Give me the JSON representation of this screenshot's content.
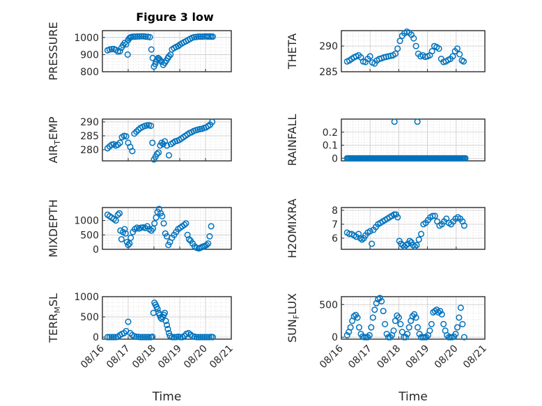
{
  "figure": {
    "title": "Figure 3 low"
  },
  "colors": {
    "marker": "#0072BD",
    "axis": "#262626"
  },
  "chart_data": [
    {
      "type": "scatter",
      "panel": "top-left",
      "ylabel": "PRESSURE",
      "xlabel": "",
      "ylim": [
        800,
        1040
      ],
      "yticks": [
        800,
        900,
        1000
      ],
      "ytick_labels": [
        "800",
        "900",
        "1000"
      ],
      "x_ticks": [
        "08/16",
        "08/17",
        "08/18",
        "08/19",
        "08/20",
        "08/21"
      ],
      "show_xticklabels": false,
      "grid": true,
      "marker": "circle",
      "x": [
        0.2,
        0.28,
        0.36,
        0.44,
        0.52,
        0.6,
        0.68,
        0.74,
        0.8,
        0.86,
        0.92,
        0.98,
        1.0,
        1.04,
        1.08,
        1.12,
        1.2,
        1.28,
        1.36,
        1.44,
        1.52,
        1.6,
        1.68,
        1.76,
        1.84,
        1.9,
        1.95,
        2.0,
        2.05,
        2.08,
        2.12,
        2.16,
        2.2,
        2.24,
        2.3,
        2.36,
        2.42,
        2.48,
        2.54,
        2.58,
        2.64,
        2.7,
        2.78,
        2.86,
        2.94,
        3.0,
        3.08,
        3.16,
        3.24,
        3.32,
        3.4,
        3.48,
        3.56,
        3.64,
        3.72,
        3.8,
        3.88,
        3.96,
        4.04,
        4.1,
        4.16,
        4.22,
        4.28
      ],
      "y": [
        925,
        930,
        932,
        933,
        928,
        918,
        920,
        940,
        955,
        968,
        960,
        900,
        985,
        995,
        1000,
        1003,
        1005,
        1005,
        1006,
        1006,
        1007,
        1007,
        1005,
        1004,
        1002,
        930,
        880,
        830,
        845,
        860,
        870,
        880,
        875,
        868,
        858,
        840,
        852,
        865,
        880,
        890,
        900,
        930,
        938,
        945,
        950,
        958,
        965,
        972,
        978,
        985,
        992,
        998,
        1002,
        1003,
        1005,
        1005,
        1005,
        1006,
        1006,
        1005,
        1006,
        1005,
        1005
      ]
    },
    {
      "type": "scatter",
      "panel": "top-right",
      "ylabel": "THETA",
      "xlabel": "",
      "ylim": [
        285,
        293
      ],
      "yticks": [
        285,
        290
      ],
      "ytick_labels": [
        "285",
        "290"
      ],
      "x_ticks": [
        "08/16",
        "08/17",
        "08/18",
        "08/19",
        "08/20",
        "08/21"
      ],
      "show_xticklabels": false,
      "grid": true,
      "marker": "circle",
      "x": [
        0.2,
        0.28,
        0.36,
        0.44,
        0.52,
        0.6,
        0.68,
        0.76,
        0.84,
        0.92,
        1.0,
        1.08,
        1.16,
        1.24,
        1.32,
        1.4,
        1.48,
        1.56,
        1.64,
        1.72,
        1.8,
        1.88,
        1.96,
        2.04,
        2.12,
        2.2,
        2.28,
        2.36,
        2.44,
        2.52,
        2.6,
        2.68,
        2.76,
        2.84,
        2.92,
        3.0,
        3.08,
        3.16,
        3.24,
        3.32,
        3.4,
        3.48,
        3.56,
        3.64,
        3.72,
        3.8,
        3.88,
        3.96,
        4.04,
        4.12,
        4.2,
        4.26
      ],
      "y": [
        287.0,
        287.2,
        287.5,
        287.8,
        288.0,
        288.2,
        287.8,
        287.0,
        286.9,
        287.5,
        288.0,
        286.8,
        286.6,
        287.2,
        287.5,
        287.6,
        287.8,
        287.9,
        288.0,
        288.1,
        288.2,
        288.5,
        289.5,
        291.0,
        292.0,
        292.5,
        292.8,
        292.6,
        292.2,
        291.5,
        290.0,
        288.5,
        288.0,
        288.2,
        287.9,
        288.0,
        288.2,
        289.0,
        290.0,
        289.8,
        289.5,
        287.5,
        286.9,
        287.0,
        287.3,
        287.5,
        288.0,
        289.0,
        289.5,
        288.4,
        287.2,
        287.0
      ]
    },
    {
      "type": "scatter",
      "panel": "row2-left",
      "ylabel": "AIR_TEMP",
      "xlabel": "",
      "ylim": [
        276,
        291
      ],
      "yticks": [
        280,
        285,
        290
      ],
      "ytick_labels": [
        "280",
        "285",
        "290"
      ],
      "x_ticks": [
        "08/16",
        "08/17",
        "08/18",
        "08/19",
        "08/20",
        "08/21"
      ],
      "show_xticklabels": false,
      "grid": true,
      "marker": "circle",
      "x": [
        0.2,
        0.28,
        0.36,
        0.44,
        0.52,
        0.6,
        0.68,
        0.76,
        0.84,
        0.92,
        1.0,
        1.08,
        1.16,
        1.24,
        1.32,
        1.4,
        1.48,
        1.56,
        1.64,
        1.72,
        1.8,
        1.88,
        1.94,
        2.0,
        2.06,
        2.12,
        2.18,
        2.24,
        2.3,
        2.36,
        2.42,
        2.5,
        2.58,
        2.66,
        2.74,
        2.82,
        2.9,
        2.98,
        3.06,
        3.14,
        3.22,
        3.3,
        3.38,
        3.46,
        3.54,
        3.62,
        3.7,
        3.78,
        3.86,
        3.94,
        4.02,
        4.1,
        4.18,
        4.26
      ],
      "y": [
        280.5,
        281.2,
        281.8,
        282.0,
        281.5,
        281.8,
        282.5,
        284.5,
        285.0,
        284.8,
        282.5,
        281.0,
        279.5,
        285.8,
        286.5,
        287.2,
        287.8,
        288.2,
        288.5,
        288.7,
        288.8,
        288.6,
        282.5,
        276.5,
        277.5,
        278.5,
        279.0,
        281.5,
        282.5,
        282.0,
        283.0,
        281.5,
        278.0,
        282.0,
        282.5,
        283.0,
        283.2,
        283.5,
        284.0,
        284.5,
        285.0,
        285.5,
        286.0,
        286.3,
        286.7,
        287.0,
        287.2,
        287.4,
        287.5,
        287.8,
        288.0,
        288.5,
        289.0,
        290.0
      ]
    },
    {
      "type": "scatter",
      "panel": "row2-right",
      "ylabel": "RAINFALL",
      "xlabel": "",
      "ylim": [
        -0.02,
        0.3
      ],
      "yticks": [
        0,
        0.1,
        0.2
      ],
      "ytick_labels": [
        "0",
        "0.1",
        "0.2"
      ],
      "x_ticks": [
        "08/16",
        "08/17",
        "08/18",
        "08/19",
        "08/20",
        "08/21"
      ],
      "show_xticklabels": false,
      "grid": true,
      "marker": "circle",
      "baseline": {
        "y": 0,
        "x_start": 0.2,
        "x_end": 4.32
      },
      "x": [
        1.85,
        2.65
      ],
      "y": [
        0.28,
        0.28
      ]
    },
    {
      "type": "scatter",
      "panel": "row3-left",
      "ylabel": "MIXDEPTH",
      "xlabel": "",
      "ylim": [
        0,
        1450
      ],
      "yticks": [
        0,
        500,
        1000
      ],
      "ytick_labels": [
        "0",
        "500",
        "1000"
      ],
      "x_ticks": [
        "08/16",
        "08/17",
        "08/18",
        "08/19",
        "08/20",
        "08/21"
      ],
      "show_xticklabels": false,
      "grid": true,
      "marker": "circle",
      "x": [
        0.2,
        0.28,
        0.36,
        0.44,
        0.52,
        0.6,
        0.66,
        0.7,
        0.74,
        0.8,
        0.86,
        0.9,
        0.95,
        1.0,
        1.05,
        1.1,
        1.18,
        1.26,
        1.34,
        1.42,
        1.5,
        1.58,
        1.66,
        1.74,
        1.82,
        1.9,
        1.96,
        2.02,
        2.08,
        2.14,
        2.2,
        2.26,
        2.32,
        2.38,
        2.44,
        2.5,
        2.56,
        2.62,
        2.7,
        2.78,
        2.86,
        2.94,
        3.02,
        3.1,
        3.18,
        3.24,
        3.3,
        3.36,
        3.42,
        3.5,
        3.58,
        3.66,
        3.74,
        3.8,
        3.86,
        3.92,
        3.98,
        4.04,
        4.1,
        4.16,
        4.22
      ],
      "y": [
        1200,
        1150,
        1100,
        1050,
        1000,
        1200,
        1250,
        650,
        350,
        600,
        700,
        550,
        250,
        150,
        200,
        400,
        600,
        700,
        750,
        720,
        750,
        760,
        740,
        800,
        700,
        650,
        720,
        900,
        1100,
        1300,
        1400,
        1250,
        1150,
        900,
        550,
        450,
        150,
        250,
        400,
        500,
        600,
        700,
        750,
        800,
        850,
        900,
        500,
        350,
        300,
        200,
        100,
        50,
        30,
        50,
        80,
        100,
        120,
        150,
        200,
        450,
        800
      ]
    },
    {
      "type": "scatter",
      "panel": "row3-right",
      "ylabel": "H2OMIXRA",
      "xlabel": "",
      "ylim": [
        5.2,
        8.2
      ],
      "yticks": [
        6,
        7,
        8
      ],
      "ytick_labels": [
        "6",
        "7",
        "8"
      ],
      "x_ticks": [
        "08/16",
        "08/17",
        "08/18",
        "08/19",
        "08/20",
        "08/21"
      ],
      "show_xticklabels": false,
      "grid": true,
      "marker": "circle",
      "x": [
        0.2,
        0.28,
        0.36,
        0.44,
        0.52,
        0.6,
        0.66,
        0.72,
        0.78,
        0.84,
        0.92,
        1.0,
        1.06,
        1.12,
        1.2,
        1.28,
        1.36,
        1.44,
        1.52,
        1.6,
        1.68,
        1.76,
        1.84,
        1.9,
        1.96,
        2.02,
        2.08,
        2.14,
        2.2,
        2.26,
        2.32,
        2.38,
        2.44,
        2.5,
        2.56,
        2.62,
        2.7,
        2.78,
        2.86,
        2.94,
        3.02,
        3.1,
        3.18,
        3.26,
        3.34,
        3.42,
        3.5,
        3.58,
        3.66,
        3.74,
        3.82,
        3.9,
        3.98,
        4.06,
        4.14,
        4.22,
        4.28
      ],
      "y": [
        6.4,
        6.3,
        6.3,
        6.2,
        6.1,
        6.3,
        6.0,
        5.9,
        6.0,
        6.2,
        6.4,
        6.5,
        5.6,
        6.6,
        6.8,
        7.0,
        7.1,
        7.2,
        7.3,
        7.4,
        7.5,
        7.6,
        7.7,
        7.7,
        7.5,
        5.8,
        5.6,
        5.5,
        5.4,
        5.5,
        5.6,
        5.8,
        5.7,
        5.5,
        5.4,
        5.5,
        5.9,
        6.3,
        7.0,
        7.1,
        7.3,
        7.5,
        7.6,
        7.6,
        7.2,
        6.9,
        7.0,
        7.2,
        7.4,
        7.1,
        7.0,
        7.2,
        7.4,
        7.5,
        7.4,
        7.2,
        6.9
      ]
    },
    {
      "type": "scatter",
      "panel": "bottom-left",
      "ylabel": "TERR_MSL",
      "xlabel": "Time",
      "ylim": [
        -50,
        1000
      ],
      "yticks": [
        0,
        500,
        1000
      ],
      "ytick_labels": [
        "0",
        "500",
        "1000"
      ],
      "x_ticks": [
        "08/16",
        "08/17",
        "08/18",
        "08/19",
        "08/20",
        "08/21"
      ],
      "show_xticklabels": true,
      "grid": true,
      "marker": "circle",
      "x": [
        0.2,
        0.28,
        0.36,
        0.44,
        0.52,
        0.6,
        0.68,
        0.76,
        0.84,
        0.92,
        1.0,
        1.08,
        1.16,
        1.24,
        1.32,
        1.4,
        1.48,
        1.56,
        1.64,
        1.72,
        1.8,
        1.88,
        1.94,
        1.98,
        2.02,
        2.06,
        2.1,
        2.14,
        2.18,
        2.22,
        2.26,
        2.3,
        2.34,
        2.38,
        2.42,
        2.46,
        2.5,
        2.54,
        2.58,
        2.62,
        2.7,
        2.78,
        2.86,
        2.94,
        3.02,
        3.1,
        3.18,
        3.26,
        3.34,
        3.42,
        3.5,
        3.58,
        3.66,
        3.74,
        3.82,
        3.9,
        3.98,
        4.06,
        4.14,
        4.22,
        4.28
      ],
      "y": [
        0,
        0,
        0,
        0,
        0,
        10,
        50,
        80,
        100,
        150,
        380,
        100,
        50,
        20,
        10,
        5,
        0,
        0,
        0,
        0,
        0,
        0,
        10,
        600,
        850,
        800,
        750,
        700,
        600,
        550,
        480,
        450,
        500,
        550,
        600,
        400,
        300,
        200,
        100,
        30,
        0,
        0,
        0,
        10,
        0,
        0,
        30,
        80,
        100,
        60,
        20,
        10,
        0,
        0,
        0,
        0,
        0,
        0,
        0,
        5,
        0
      ]
    },
    {
      "type": "scatter",
      "panel": "bottom-right",
      "ylabel": "SUN_FLUX",
      "xlabel": "Time",
      "ylim": [
        -30,
        620
      ],
      "yticks": [
        0,
        500
      ],
      "ytick_labels": [
        "0",
        "500"
      ],
      "x_ticks": [
        "08/16",
        "08/17",
        "08/18",
        "08/19",
        "08/20",
        "08/21"
      ],
      "show_xticklabels": true,
      "grid": true,
      "marker": "circle",
      "x": [
        0.2,
        0.26,
        0.32,
        0.38,
        0.44,
        0.5,
        0.56,
        0.62,
        0.68,
        0.74,
        0.8,
        0.86,
        0.92,
        0.98,
        1.04,
        1.1,
        1.16,
        1.22,
        1.28,
        1.34,
        1.4,
        1.46,
        1.52,
        1.58,
        1.64,
        1.7,
        1.76,
        1.82,
        1.88,
        1.94,
        2.0,
        2.06,
        2.12,
        2.18,
        2.24,
        2.3,
        2.36,
        2.42,
        2.48,
        2.54,
        2.6,
        2.66,
        2.72,
        2.78,
        2.84,
        2.9,
        2.96,
        3.02,
        3.08,
        3.14,
        3.2,
        3.26,
        3.32,
        3.38,
        3.44,
        3.5,
        3.56,
        3.62,
        3.68,
        3.74,
        3.8,
        3.86,
        3.92,
        3.98,
        4.04,
        4.1,
        4.16,
        4.22,
        4.28
      ],
      "y": [
        30,
        80,
        150,
        250,
        320,
        340,
        300,
        150,
        50,
        10,
        0,
        0,
        0,
        30,
        150,
        300,
        420,
        520,
        580,
        600,
        550,
        400,
        200,
        50,
        0,
        0,
        30,
        100,
        250,
        330,
        300,
        200,
        80,
        0,
        0,
        50,
        150,
        250,
        320,
        350,
        300,
        150,
        50,
        0,
        0,
        0,
        0,
        30,
        100,
        200,
        380,
        400,
        420,
        380,
        400,
        350,
        200,
        100,
        30,
        0,
        0,
        0,
        10,
        50,
        150,
        300,
        450,
        200,
        0
      ]
    }
  ]
}
